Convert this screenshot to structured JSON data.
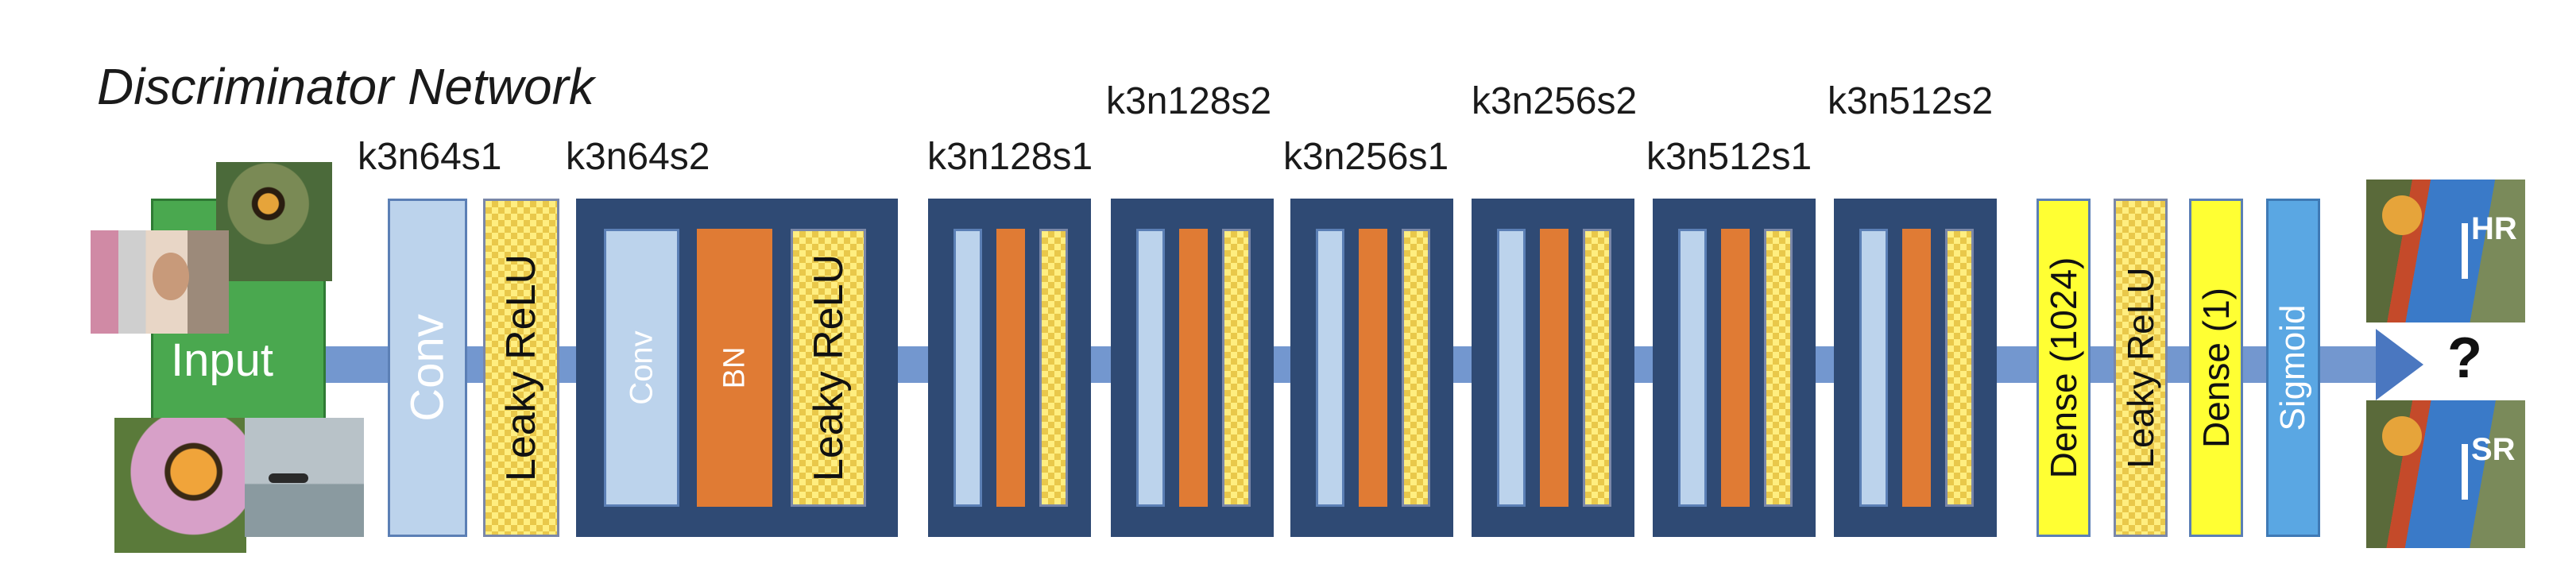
{
  "title": "Discriminator Network",
  "input_label": "Input",
  "question_mark": "?",
  "outputs": {
    "hr": "HR",
    "sr": "SR"
  },
  "layer_labels": {
    "k3n64s1": "k3n64s1",
    "k3n64s2": "k3n64s2",
    "k3n128s1": "k3n128s1",
    "k3n128s2": "k3n128s2",
    "k3n256s1": "k3n256s1",
    "k3n256s2": "k3n256s2",
    "k3n512s1": "k3n512s1",
    "k3n512s2": "k3n512s2"
  },
  "layers": {
    "conv": "Conv",
    "leaky_relu": "Leaky ReLU",
    "bn": "BN",
    "dense_1024": "Dense (1024)",
    "dense_1": "Dense (1)",
    "sigmoid": "Sigmoid"
  },
  "colors": {
    "axis": "#7397cf",
    "conv_light": "#bcd3ec",
    "bn_orange": "#e07b34",
    "dense_yellow": "#ffff33",
    "sigmoid_blue": "#5aa7e3",
    "block_dark": "#2f4a74",
    "input_green": "#4aa84f"
  }
}
